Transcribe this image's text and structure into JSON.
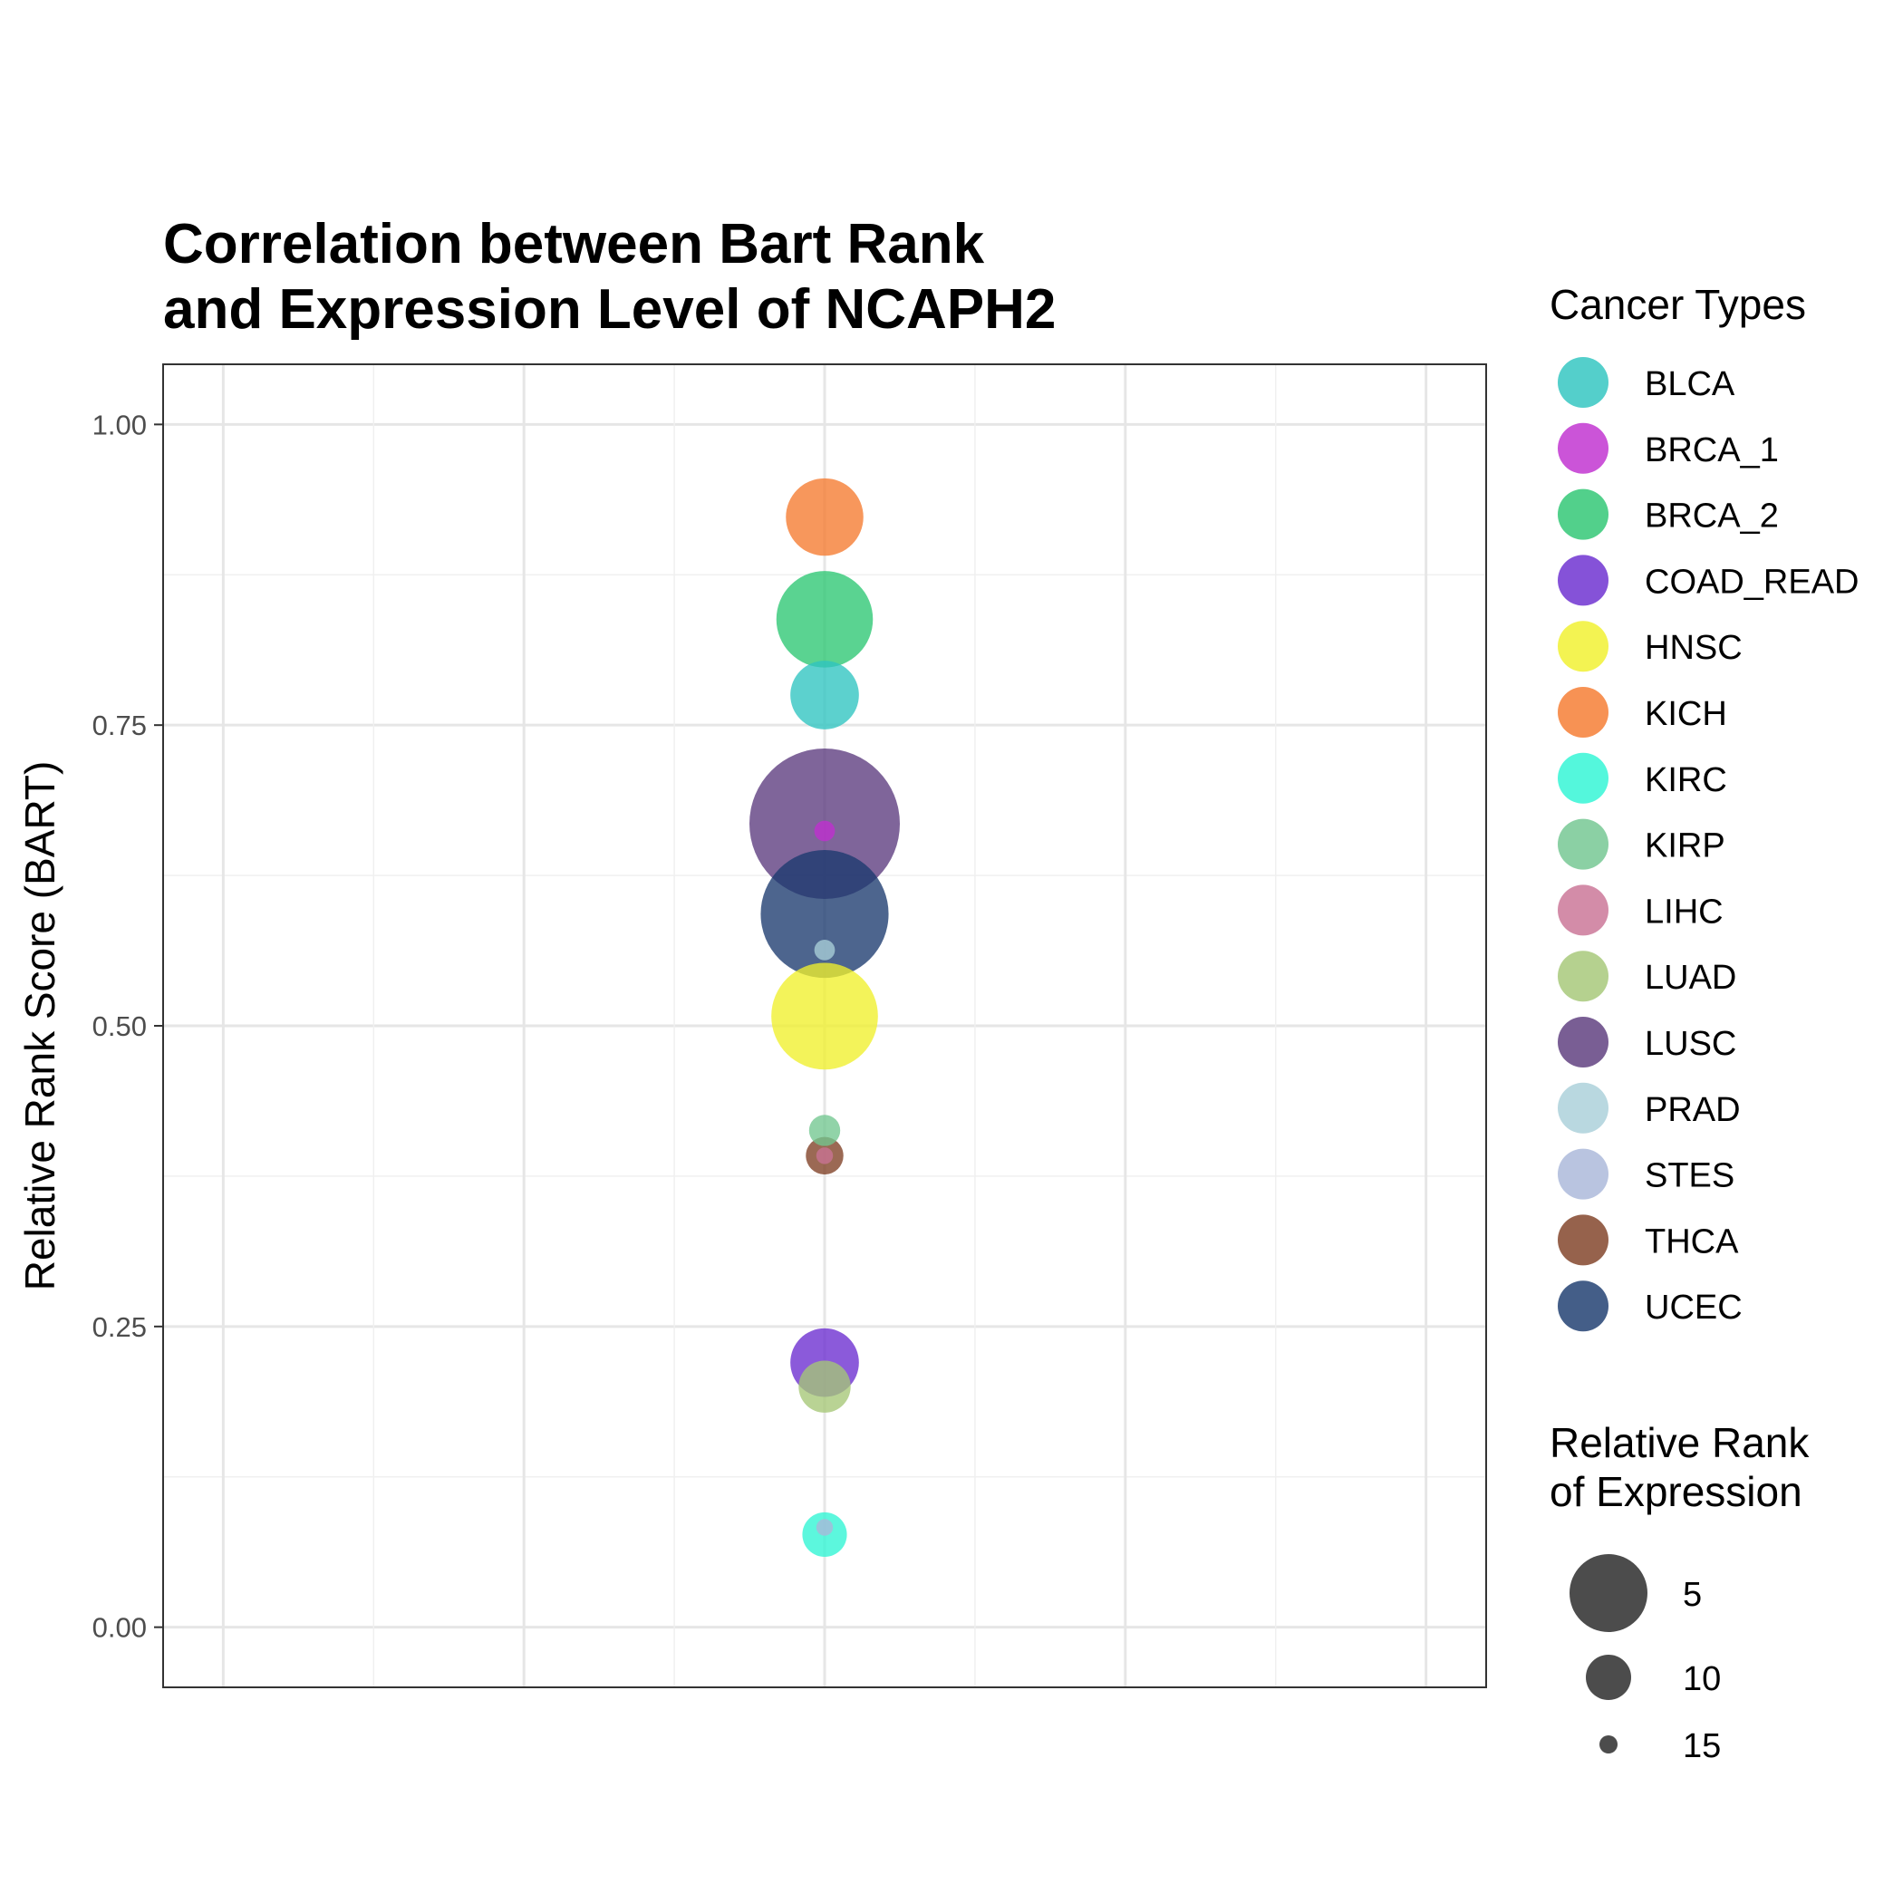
{
  "chart_data": {
    "type": "scatter",
    "title_lines": [
      "Correlation between Bart Rank",
      "and Expression Level of NCAPH2"
    ],
    "xlabel": "",
    "ylabel": "Relative Rank Score (BART)",
    "ylim": [
      -0.05,
      1.05
    ],
    "yticks": [
      0.0,
      0.25,
      0.5,
      0.75,
      1.0
    ],
    "ytick_labels": [
      "0.00",
      "0.25",
      "0.50",
      "0.75",
      "1.00"
    ],
    "xlim": [
      0.6,
      1.4
    ],
    "grid": true,
    "legend_color_title": "Cancer Types",
    "legend_size_title_lines": [
      "Relative Rank",
      "of Expression"
    ],
    "size_legend": [
      {
        "label": "5",
        "value": 5
      },
      {
        "label": "10",
        "value": 10
      },
      {
        "label": "15",
        "value": 15
      }
    ],
    "series": [
      {
        "name": "BLCA",
        "color": "#2ec4c0",
        "x": 1,
        "y": 0.775,
        "size": 9
      },
      {
        "name": "BRCA_1",
        "color": "#c02ecf",
        "x": 1,
        "y": 0.662,
        "size": 16
      },
      {
        "name": "BRCA_2",
        "color": "#2cc672",
        "x": 1,
        "y": 0.838,
        "size": 6
      },
      {
        "name": "COAD_READ",
        "color": "#6a2ccf",
        "x": 1,
        "y": 0.22,
        "size": 9
      },
      {
        "name": "HNSC",
        "color": "#f0f02c",
        "x": 1,
        "y": 0.508,
        "size": 5
      },
      {
        "name": "KICH",
        "color": "#f57a2e",
        "x": 1,
        "y": 0.923,
        "size": 8
      },
      {
        "name": "KIRC",
        "color": "#2ef5d4",
        "x": 1,
        "y": 0.077,
        "size": 12
      },
      {
        "name": "KIRP",
        "color": "#72c690",
        "x": 1,
        "y": 0.413,
        "size": 14
      },
      {
        "name": "LIHC",
        "color": "#c97395",
        "x": 1,
        "y": 0.392,
        "size": 17
      },
      {
        "name": "LUAD",
        "color": "#a5c776",
        "x": 1,
        "y": 0.2,
        "size": 11
      },
      {
        "name": "LUSC",
        "color": "#5b3a7d",
        "x": 1,
        "y": 0.668,
        "size": 1
      },
      {
        "name": "PRAD",
        "color": "#a9d0d9",
        "x": 1,
        "y": 0.563,
        "size": 16
      },
      {
        "name": "STES",
        "color": "#aab7d9",
        "x": 1,
        "y": 0.083,
        "size": 17
      },
      {
        "name": "THCA",
        "color": "#7f3f24",
        "x": 1,
        "y": 0.392,
        "size": 13
      },
      {
        "name": "UCEC",
        "color": "#1b3a6e",
        "x": 1,
        "y": 0.593,
        "size": 3
      }
    ]
  }
}
